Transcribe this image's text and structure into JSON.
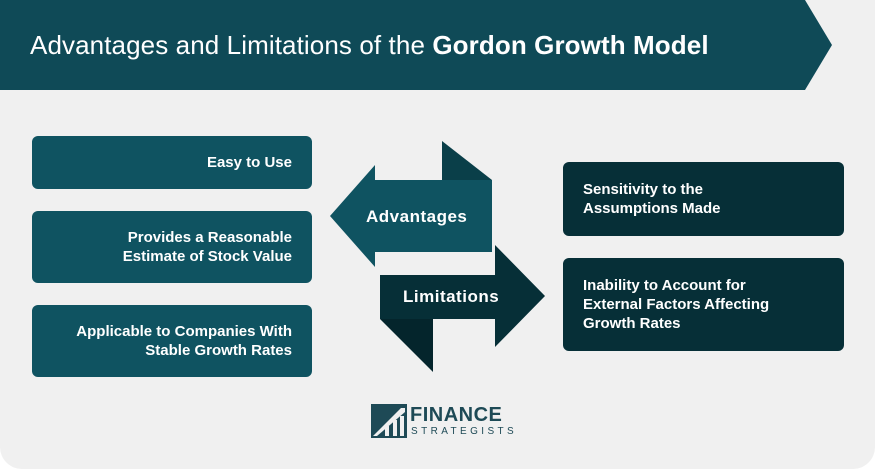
{
  "header": {
    "title_regular": "Advantages and Limitations of the ",
    "title_bold": "Gordon Growth Model"
  },
  "advantages": {
    "label": "Advantages",
    "items": [
      {
        "lines": [
          "Easy to Use"
        ]
      },
      {
        "lines": [
          "Provides a Reasonable",
          "Estimate of Stock Value"
        ]
      },
      {
        "lines": [
          "Applicable to Companies With",
          "Stable Growth Rates"
        ]
      }
    ]
  },
  "limitations": {
    "label": "Limitations",
    "items": [
      {
        "lines": [
          "Sensitivity to the",
          "Assumptions Made"
        ]
      },
      {
        "lines": [
          "Inability to Account for",
          "External Factors Affecting",
          "Growth Rates"
        ]
      }
    ]
  },
  "logo": {
    "name": "FINANCE",
    "sub": "STRATEGISTS"
  },
  "colors": {
    "header": "#0f4a57",
    "advantage": "#0f5361",
    "limitation": "#062f37",
    "background": "#f0f0f0"
  }
}
